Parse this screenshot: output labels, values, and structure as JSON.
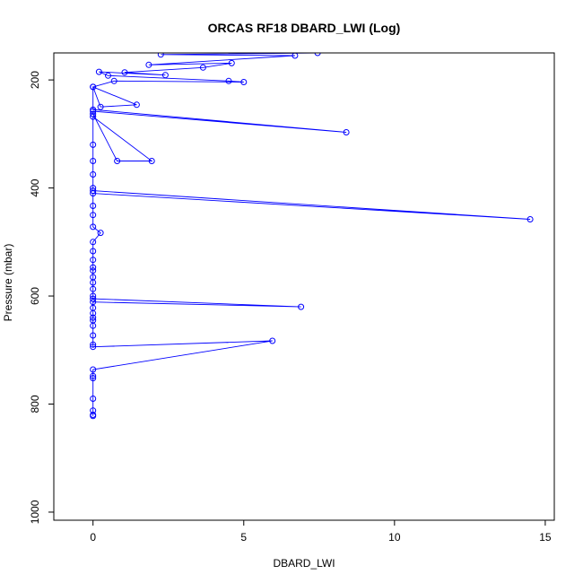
{
  "chart_data": {
    "type": "line",
    "title": "ORCAS RF18 DBARD_LWI (Log)",
    "xlabel": "DBARD_LWI",
    "ylabel": "Pressure (mbar)",
    "xlim": [
      -1.3,
      15.3
    ],
    "ylim": [
      1015,
      150
    ],
    "y_inverted": true,
    "x_ticks": [
      0,
      5,
      10,
      15
    ],
    "y_ticks": [
      200,
      400,
      600,
      800,
      1000
    ],
    "grid": false,
    "marker": "open-circle",
    "line_color": "#0000ff",
    "series": [
      {
        "x": [
          0.0,
          0.0,
          0.0,
          0.0,
          0.0,
          0.0,
          0.0,
          5.95,
          0.0,
          0.0,
          0.0,
          0.0,
          0.0,
          0.0,
          0.0,
          0.0,
          0.0,
          6.9,
          0.0,
          0.0,
          0.0,
          0.0,
          0.0,
          0.0,
          0.0,
          0.0,
          0.0,
          0.0,
          0.25,
          0.0,
          0.0,
          0.0,
          0.0,
          14.5,
          0.0,
          0.0,
          0.0,
          0.0,
          0.0,
          0.0,
          1.95,
          0.8,
          0.0,
          0.0,
          8.4,
          0.0,
          0.0,
          0.25,
          1.45,
          0.0,
          0.7,
          5.0,
          4.5,
          0.5,
          0.2,
          2.4,
          1.05,
          3.65,
          4.6,
          1.85,
          6.7,
          2.25,
          7.45
        ],
        "y": [
          822,
          820,
          812,
          790,
          752,
          748,
          736,
          683,
          694,
          690,
          673,
          655,
          645,
          640,
          632,
          622,
          611,
          620,
          605,
          600,
          587,
          575,
          565,
          553,
          547,
          533,
          517,
          500,
          483,
          472,
          450,
          433,
          410,
          458,
          405,
          400,
          375,
          350,
          320,
          268,
          350,
          350,
          263,
          258,
          297,
          255,
          213,
          250,
          246,
          213,
          202,
          204,
          202,
          192,
          185,
          191,
          186,
          177,
          169,
          172,
          155,
          153,
          150
        ]
      }
    ]
  }
}
